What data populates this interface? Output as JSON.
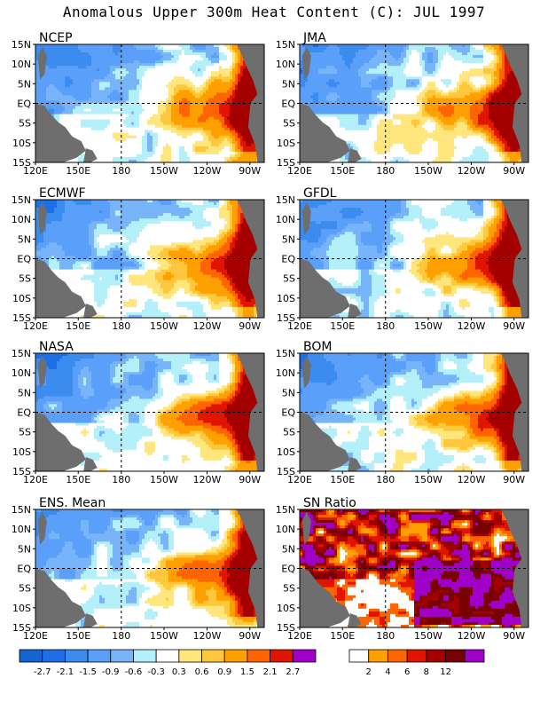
{
  "title": "Anomalous Upper 300m Heat Content (C): JUL 1997",
  "colors": {
    "anomaly_scale": [
      "#1464d2",
      "#1e6ee6",
      "#3c8cf0",
      "#5aa0fa",
      "#78b4fa",
      "#b4f0fa",
      "#ffffff",
      "#ffe67d",
      "#ffc83c",
      "#ffa000",
      "#ff6400",
      "#e11400",
      "#a50000",
      "#780000",
      "#a000c8"
    ],
    "ratio_scale": [
      "#ffffff",
      "#ffa000",
      "#ff6400",
      "#e11400",
      "#a50000",
      "#780000",
      "#a000c8"
    ],
    "land": "#6e6e6e"
  },
  "chart_data": [
    {
      "type": "heatmap",
      "title": "NCEP",
      "xlabel": "",
      "ylabel": "",
      "x_ticks": [
        "120E",
        "150E",
        "180",
        "150W",
        "120W",
        "90W"
      ],
      "y_ticks": [
        "15N",
        "10N",
        "5N",
        "EQ",
        "5S",
        "10S",
        "15S"
      ],
      "description_of_values": "anomaly field",
      "colorbar": "anomaly"
    },
    {
      "type": "heatmap",
      "title": "JMA",
      "xlabel": "",
      "ylabel": "",
      "x_ticks": [
        "120E",
        "150E",
        "180",
        "150W",
        "120W",
        "90W"
      ],
      "y_ticks": [
        "15N",
        "10N",
        "5N",
        "EQ",
        "5S",
        "10S",
        "15S"
      ],
      "colorbar": "anomaly"
    },
    {
      "type": "heatmap",
      "title": "ECMWF",
      "xlabel": "",
      "ylabel": "",
      "x_ticks": [
        "120E",
        "150E",
        "180",
        "150W",
        "120W",
        "90W"
      ],
      "y_ticks": [
        "15N",
        "10N",
        "5N",
        "EQ",
        "5S",
        "10S",
        "15S"
      ],
      "colorbar": "anomaly"
    },
    {
      "type": "heatmap",
      "title": "GFDL",
      "xlabel": "",
      "ylabel": "",
      "x_ticks": [
        "120E",
        "150E",
        "180",
        "150W",
        "120W",
        "90W"
      ],
      "y_ticks": [
        "15N",
        "10N",
        "5N",
        "EQ",
        "5S",
        "10S",
        "15S"
      ],
      "colorbar": "anomaly"
    },
    {
      "type": "heatmap",
      "title": "NASA",
      "xlabel": "",
      "ylabel": "",
      "x_ticks": [
        "120E",
        "150E",
        "180",
        "150W",
        "120W",
        "90W"
      ],
      "y_ticks": [
        "15N",
        "10N",
        "5N",
        "EQ",
        "5S",
        "10S",
        "15S"
      ],
      "colorbar": "anomaly"
    },
    {
      "type": "heatmap",
      "title": "BOM",
      "xlabel": "",
      "ylabel": "",
      "x_ticks": [
        "120E",
        "150E",
        "180",
        "150W",
        "120W",
        "90W"
      ],
      "y_ticks": [
        "15N",
        "10N",
        "5N",
        "EQ",
        "5S",
        "10S",
        "15S"
      ],
      "colorbar": "anomaly"
    },
    {
      "type": "heatmap",
      "title": "ENS. Mean",
      "xlabel": "",
      "ylabel": "",
      "x_ticks": [
        "120E",
        "150E",
        "180",
        "150W",
        "120W",
        "90W"
      ],
      "y_ticks": [
        "15N",
        "10N",
        "5N",
        "EQ",
        "5S",
        "10S",
        "15S"
      ],
      "colorbar": "anomaly"
    },
    {
      "type": "heatmap",
      "title": "SN Ratio",
      "xlabel": "",
      "ylabel": "",
      "x_ticks": [
        "120E",
        "150E",
        "180",
        "150W",
        "120W",
        "90W"
      ],
      "y_ticks": [
        "15N",
        "10N",
        "5N",
        "EQ",
        "5S",
        "10S",
        "15S"
      ],
      "colorbar": "ratio"
    }
  ],
  "colorbars": {
    "anomaly": {
      "labels": [
        "-2.7",
        "-2.1",
        "-1.5",
        "-0.9",
        "-0.6",
        "-0.3",
        "0.3",
        "0.6",
        "0.9",
        "1.5",
        "2.1",
        "2.7"
      ]
    },
    "ratio": {
      "labels": [
        "2",
        "4",
        "6",
        "8",
        "12"
      ]
    }
  }
}
